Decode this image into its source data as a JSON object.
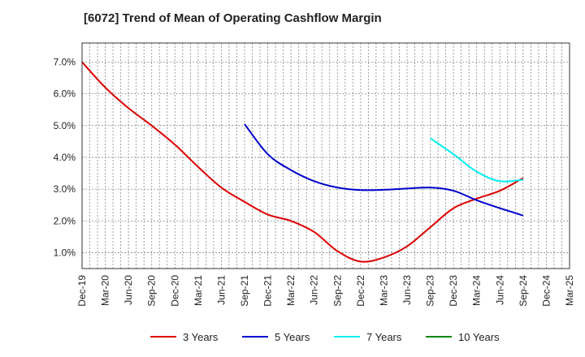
{
  "chart_data": {
    "type": "line",
    "title": "[6072]  Trend of Mean of Operating Cashflow Margin",
    "xlabel": "",
    "ylabel": "",
    "x_ticks": [
      "Dec-19",
      "Mar-20",
      "Jun-20",
      "Sep-20",
      "Dec-20",
      "Mar-21",
      "Jun-21",
      "Sep-21",
      "Dec-21",
      "Mar-22",
      "Jun-22",
      "Sep-22",
      "Dec-22",
      "Mar-23",
      "Jun-23",
      "Sep-23",
      "Dec-23",
      "Mar-24",
      "Jun-24",
      "Sep-24",
      "Dec-24",
      "Mar-25"
    ],
    "y_ticks": [
      "1.0%",
      "2.0%",
      "3.0%",
      "4.0%",
      "5.0%",
      "6.0%",
      "7.0%"
    ],
    "ylim": [
      0.5,
      7.6
    ],
    "y_unit": "%",
    "grid": true,
    "legend_position": "bottom",
    "series": [
      {
        "name": "3 Years",
        "color": "#dd0000",
        "x": [
          "Dec-19",
          "Mar-20",
          "Jun-20",
          "Sep-20",
          "Dec-20",
          "Mar-21",
          "Jun-21",
          "Sep-21",
          "Dec-21",
          "Mar-22",
          "Jun-22",
          "Sep-22",
          "Dec-22",
          "Mar-23",
          "Jun-23",
          "Sep-23",
          "Dec-23",
          "Mar-24",
          "Jun-24",
          "Sep-24"
        ],
        "values": [
          7.0,
          6.2,
          5.55,
          5.0,
          4.4,
          3.7,
          3.05,
          2.6,
          2.2,
          2.0,
          1.65,
          1.05,
          0.72,
          0.85,
          1.2,
          1.8,
          2.4,
          2.7,
          2.95,
          3.35
        ]
      },
      {
        "name": "5 Years",
        "color": "#0000cc",
        "x": [
          "Sep-21",
          "Dec-21",
          "Mar-22",
          "Jun-22",
          "Sep-22",
          "Dec-22",
          "Mar-23",
          "Jun-23",
          "Sep-23",
          "Dec-23",
          "Mar-24",
          "Jun-24",
          "Sep-24"
        ],
        "values": [
          5.05,
          4.1,
          3.6,
          3.25,
          3.05,
          2.97,
          2.98,
          3.02,
          3.05,
          2.95,
          2.65,
          2.4,
          2.17
        ]
      },
      {
        "name": "7 Years",
        "color": "#00eeee",
        "x": [
          "Sep-23",
          "Dec-23",
          "Mar-24",
          "Jun-24",
          "Sep-24"
        ],
        "values": [
          4.6,
          4.1,
          3.55,
          3.25,
          3.3
        ]
      },
      {
        "name": "10 Years",
        "color": "#008800",
        "x": [],
        "values": []
      }
    ]
  }
}
